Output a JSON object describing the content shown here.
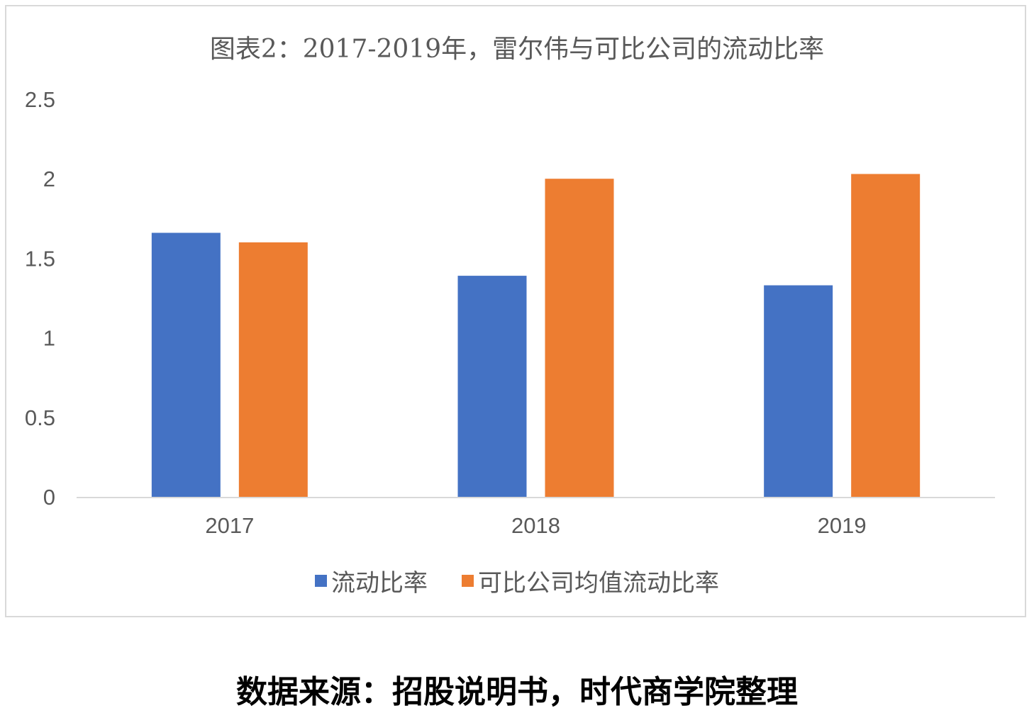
{
  "chart_data": {
    "type": "bar",
    "title": "图表2：2017-2019年，雷尔伟与可比公司的流动比率",
    "categories": [
      "2017",
      "2018",
      "2019"
    ],
    "series": [
      {
        "name": "流动比率",
        "color": "#4472c4",
        "values": [
          1.66,
          1.39,
          1.33
        ]
      },
      {
        "name": "可比公司均值流动比率",
        "color": "#ed7d31",
        "values": [
          1.6,
          2.0,
          2.03
        ]
      }
    ],
    "ylim": [
      0,
      2.5
    ],
    "yticks": [
      "0",
      "0.5",
      "1",
      "1.5",
      "2",
      "2.5"
    ],
    "grid": false,
    "legend": "bottom"
  },
  "source": "数据来源：招股说明书，时代商学院整理"
}
